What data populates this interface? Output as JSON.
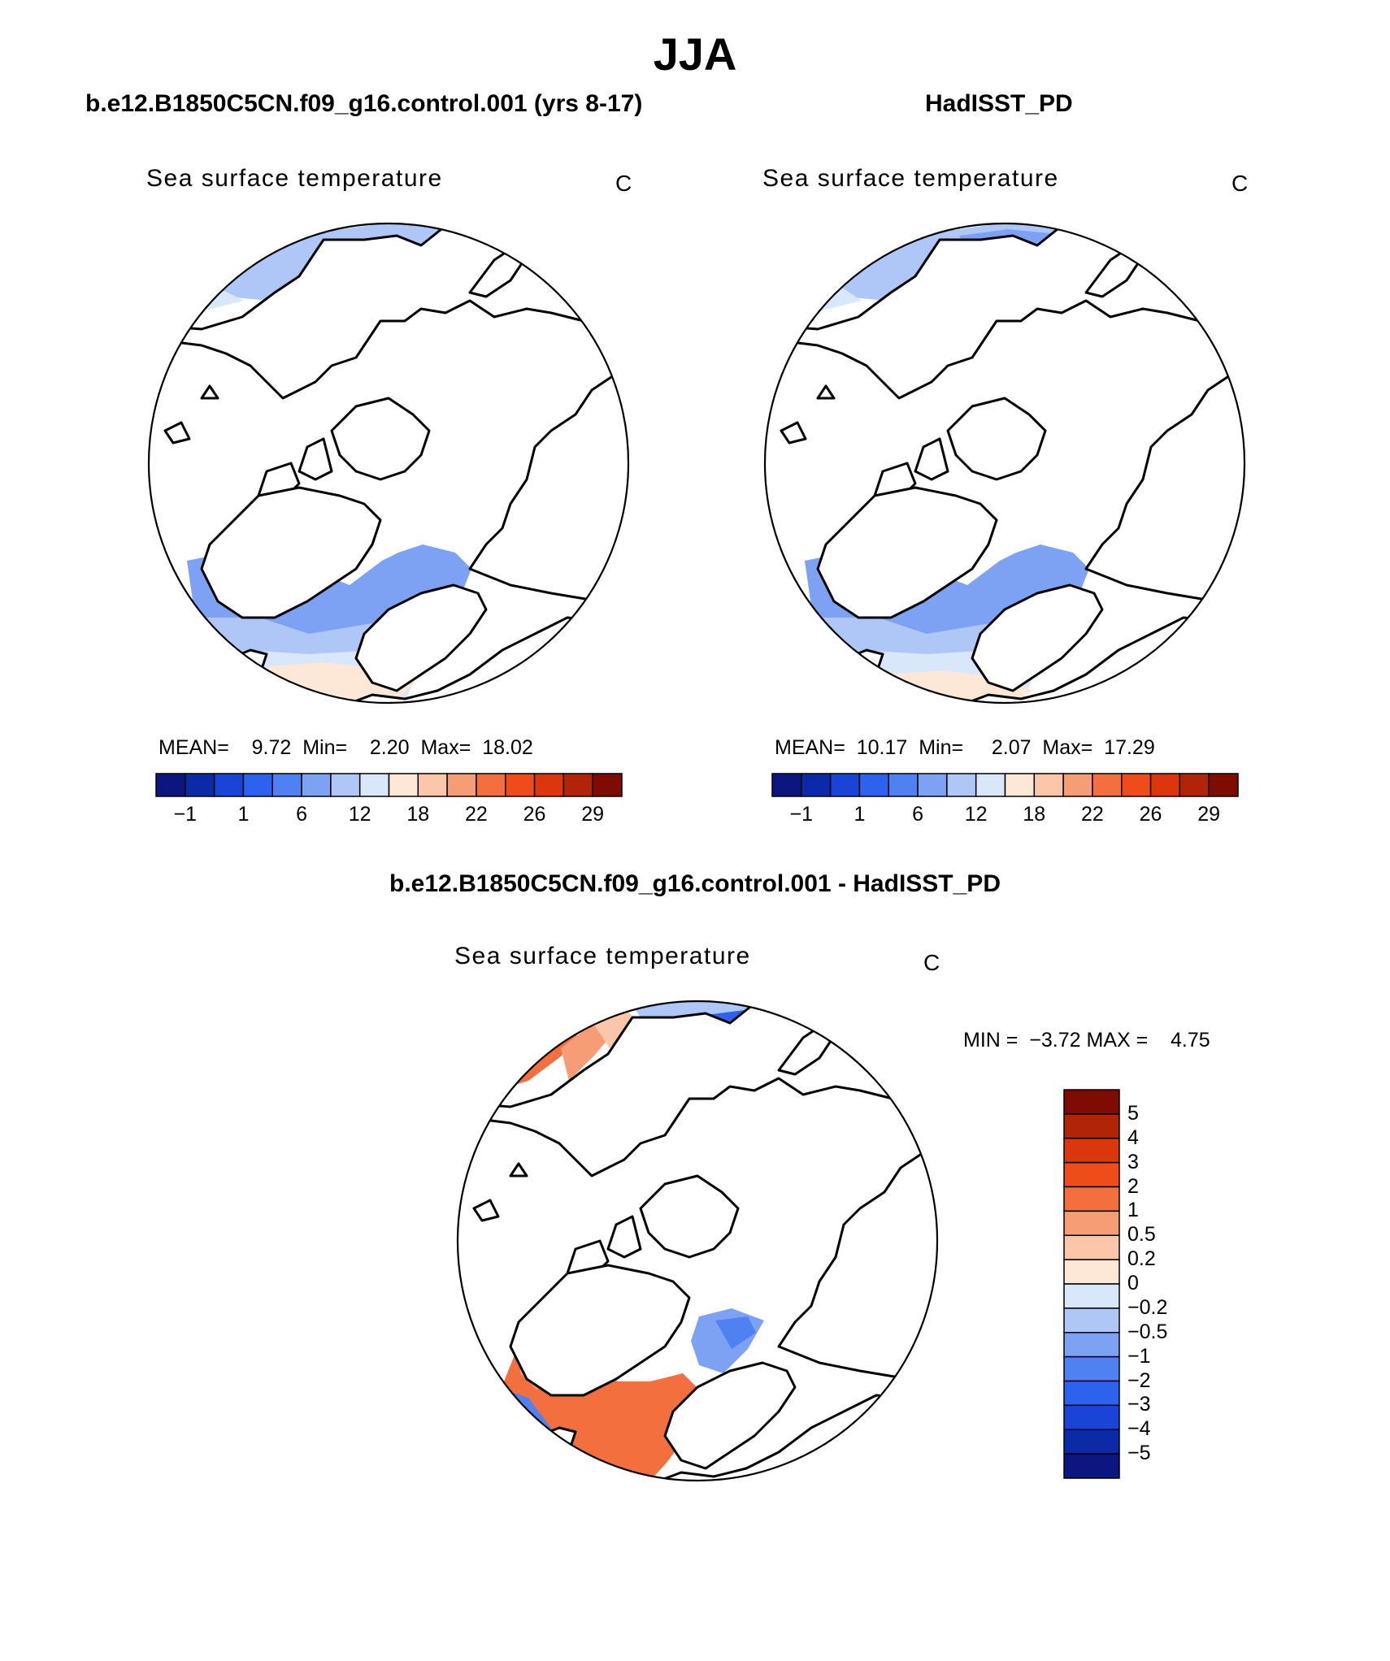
{
  "title": "JJA",
  "panels": {
    "left": {
      "case_title": "b.e12.B1850C5CN.f09_g16.control.001 (yrs 8-17)",
      "var_title": "Sea surface temperature",
      "units": "C",
      "stats": {
        "mean_label": "MEAN=",
        "mean": "9.72",
        "min_label": "Min=",
        "min": "2.20",
        "max_label": "Max=",
        "max": "18.02"
      }
    },
    "right": {
      "case_title": "HadISST_PD",
      "var_title": "Sea surface temperature",
      "units": "C",
      "stats": {
        "mean_label": "MEAN=",
        "mean": "10.17",
        "min_label": "Min=",
        "min": "2.07",
        "max_label": "Max=",
        "max": "17.29"
      }
    },
    "diff": {
      "case_title": "b.e12.B1850C5CN.f09_g16.control.001 - HadISST_PD",
      "var_title": "Sea surface temperature",
      "units": "C",
      "stats": {
        "min_label": "MIN =",
        "min": "−3.72",
        "max_label": "MAX =",
        "max": "4.75"
      }
    }
  },
  "colorbar_abs": {
    "colors": [
      "#0b1680",
      "#0a2aa8",
      "#1a44d6",
      "#2d62ee",
      "#4f81f2",
      "#7ea2f3",
      "#aec7f7",
      "#d8e7fa",
      "#fde7d6",
      "#fbc6aa",
      "#f79d76",
      "#f3703e",
      "#ee4d19",
      "#db360c",
      "#b22407",
      "#7f0c03"
    ],
    "ticks": [
      "−1",
      "1",
      "6",
      "12",
      "18",
      "22",
      "26",
      "29"
    ]
  },
  "colorbar_diff": {
    "colors_top_to_bottom": [
      "#7f0c03",
      "#b22407",
      "#db360c",
      "#ee4d19",
      "#f3703e",
      "#f79d76",
      "#fbc6aa",
      "#fde7d6",
      "#d8e7fa",
      "#aec7f7",
      "#7ea2f3",
      "#4f81f2",
      "#2d62ee",
      "#1a44d6",
      "#0a2aa8",
      "#0b1680"
    ],
    "ticks": [
      "5",
      "4",
      "3",
      "2",
      "1",
      "0.5",
      "0.2",
      "0",
      "−0.2",
      "−0.5",
      "−1",
      "−2",
      "−3",
      "−4",
      "−5"
    ]
  },
  "colors": {
    "ocean_light_blue": "#d8e7fa",
    "ocean_mid_blue": "#aec7f7",
    "ocean_blue": "#7ea2f3",
    "ocean_deep_blue": "#4f81f2",
    "ocean_peach": "#fde7d6",
    "diff_orange": "#f3703e",
    "diff_light_orange": "#f79d76"
  }
}
